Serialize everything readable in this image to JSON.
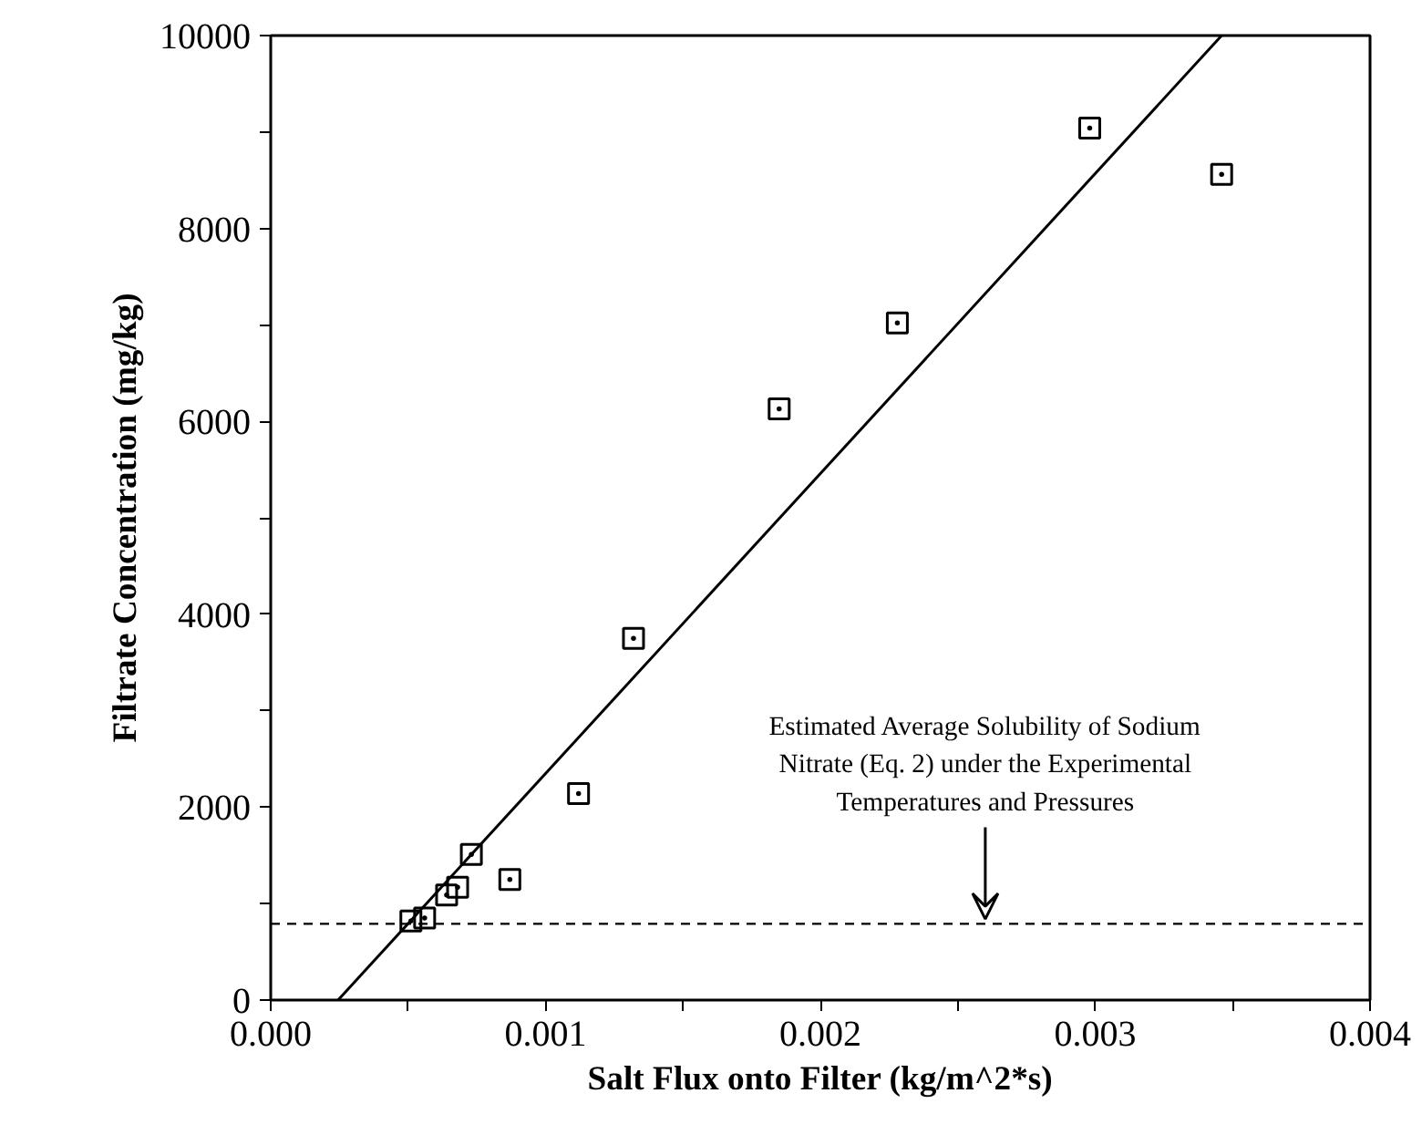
{
  "chart_data": {
    "type": "scatter",
    "xlabel": "Salt Flux onto Filter (kg/m^2*s)",
    "ylabel": "Filtrate Concentration (mg/kg)",
    "xlim": [
      0,
      0.004
    ],
    "ylim": [
      0,
      10000
    ],
    "xticks": [
      {
        "value": 0,
        "label": "0.000"
      },
      {
        "value": 0.0005,
        "label": null
      },
      {
        "value": 0.001,
        "label": "0.001"
      },
      {
        "value": 0.0015,
        "label": null
      },
      {
        "value": 0.002,
        "label": "0.002"
      },
      {
        "value": 0.0025,
        "label": null
      },
      {
        "value": 0.003,
        "label": "0.003"
      },
      {
        "value": 0.0035,
        "label": null
      },
      {
        "value": 0.004,
        "label": "0.004"
      }
    ],
    "yticks": [
      0,
      {
        "value": 1000,
        "label": null
      },
      2000,
      {
        "value": 3000,
        "label": null
      },
      4000,
      {
        "value": 5000,
        "label": null
      },
      6000,
      {
        "value": 7000,
        "label": null
      },
      8000,
      {
        "value": 9000,
        "label": null
      },
      10000
    ],
    "grid": false,
    "marker": "square",
    "series": [
      {
        "color": "#000000",
        "x": [
          0.00051,
          0.00056,
          0.00064,
          0.00068,
          0.00073,
          0.00087,
          0.00112,
          0.00132,
          0.00185,
          0.00228,
          0.00298,
          0.00346
        ],
        "values": [
          820,
          850,
          1090,
          1170,
          1510,
          1250,
          2140,
          3750,
          6130,
          7020,
          9040,
          8560
        ]
      },
      {
        "type": "line",
        "color": "#000000",
        "line_style": "solid",
        "marker": "none",
        "x": [
          0.000245,
          0.00346
        ],
        "values": [
          0,
          10000
        ]
      }
    ],
    "ref_lines": [
      {
        "axis": "y",
        "value": 790,
        "line_style": "dashed",
        "color": "#000000"
      }
    ],
    "annotations": [
      {
        "text": "Estimated Average Solubility of Sodium\nNitrate (Eq. 2) under the Experimental\nTemperatures and Pressures",
        "x": 0.0026,
        "y": 790
      }
    ]
  }
}
